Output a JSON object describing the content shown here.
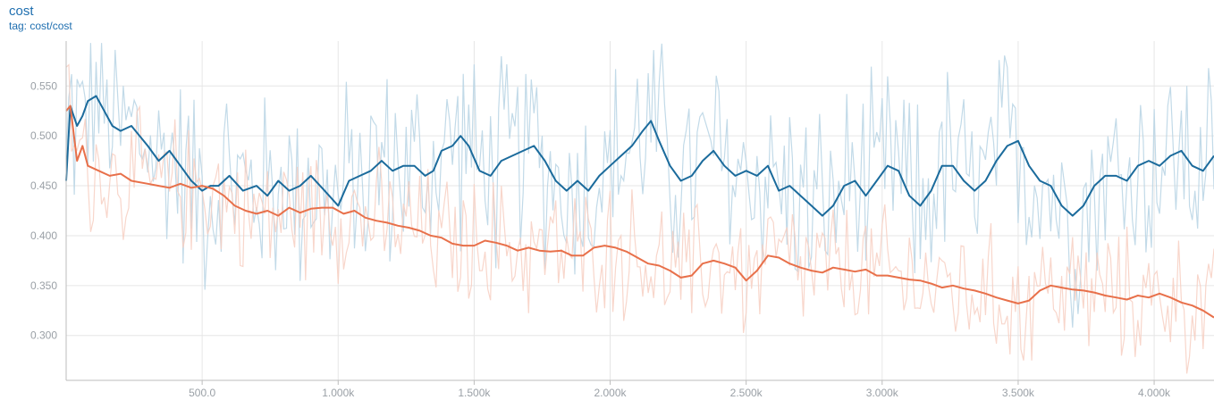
{
  "card": {
    "title": "cost",
    "tag": "tag: cost/cost"
  },
  "colors": {
    "blue_smoothed": "#1b6b9c",
    "blue_raw": "#b7d4e4",
    "orange_smoothed": "#e8704a",
    "orange_raw": "#f7cfc2",
    "grid": "#e6e6e6",
    "axis": "#bdbdbd"
  },
  "chart_data": {
    "type": "line",
    "title": "cost",
    "subtitle": "tag: cost/cost",
    "xlabel": "",
    "ylabel": "",
    "xlim": [
      0,
      4220
    ],
    "ylim": [
      0.255,
      0.595
    ],
    "grid": true,
    "x_ticks": [
      500,
      1000,
      1500,
      2000,
      2500,
      3000,
      3500,
      4000
    ],
    "x_tick_labels": [
      "500.0",
      "1.000k",
      "1.500k",
      "2.000k",
      "2.500k",
      "3.000k",
      "3.500k",
      "4.000k"
    ],
    "y_ticks": [
      0.3,
      0.35,
      0.4,
      0.45,
      0.5,
      0.55
    ],
    "y_tick_labels": [
      "0.300",
      "0.350",
      "0.400",
      "0.450",
      "0.500",
      "0.550"
    ],
    "series": [
      {
        "color_key": "blue",
        "smoothed": [
          [
            0,
            0.455
          ],
          [
            15,
            0.53
          ],
          [
            40,
            0.51
          ],
          [
            60,
            0.52
          ],
          [
            80,
            0.535
          ],
          [
            110,
            0.54
          ],
          [
            140,
            0.525
          ],
          [
            170,
            0.51
          ],
          [
            200,
            0.505
          ],
          [
            240,
            0.51
          ],
          [
            270,
            0.5
          ],
          [
            300,
            0.49
          ],
          [
            340,
            0.475
          ],
          [
            380,
            0.485
          ],
          [
            420,
            0.47
          ],
          [
            460,
            0.455
          ],
          [
            500,
            0.445
          ],
          [
            530,
            0.45
          ],
          [
            560,
            0.45
          ],
          [
            600,
            0.46
          ],
          [
            650,
            0.445
          ],
          [
            700,
            0.45
          ],
          [
            740,
            0.44
          ],
          [
            780,
            0.455
          ],
          [
            820,
            0.445
          ],
          [
            860,
            0.45
          ],
          [
            900,
            0.46
          ],
          [
            950,
            0.445
          ],
          [
            1000,
            0.43
          ],
          [
            1040,
            0.455
          ],
          [
            1080,
            0.46
          ],
          [
            1120,
            0.465
          ],
          [
            1160,
            0.475
          ],
          [
            1200,
            0.465
          ],
          [
            1240,
            0.47
          ],
          [
            1280,
            0.47
          ],
          [
            1320,
            0.46
          ],
          [
            1350,
            0.465
          ],
          [
            1380,
            0.485
          ],
          [
            1420,
            0.49
          ],
          [
            1450,
            0.5
          ],
          [
            1480,
            0.49
          ],
          [
            1520,
            0.465
          ],
          [
            1560,
            0.46
          ],
          [
            1600,
            0.475
          ],
          [
            1640,
            0.48
          ],
          [
            1680,
            0.485
          ],
          [
            1720,
            0.49
          ],
          [
            1760,
            0.475
          ],
          [
            1800,
            0.455
          ],
          [
            1840,
            0.445
          ],
          [
            1880,
            0.455
          ],
          [
            1920,
            0.445
          ],
          [
            1960,
            0.46
          ],
          [
            2000,
            0.47
          ],
          [
            2040,
            0.48
          ],
          [
            2080,
            0.49
          ],
          [
            2120,
            0.505
          ],
          [
            2150,
            0.515
          ],
          [
            2180,
            0.495
          ],
          [
            2220,
            0.47
          ],
          [
            2260,
            0.455
          ],
          [
            2300,
            0.46
          ],
          [
            2340,
            0.475
          ],
          [
            2380,
            0.485
          ],
          [
            2420,
            0.47
          ],
          [
            2460,
            0.46
          ],
          [
            2500,
            0.465
          ],
          [
            2540,
            0.46
          ],
          [
            2580,
            0.47
          ],
          [
            2620,
            0.445
          ],
          [
            2660,
            0.45
          ],
          [
            2700,
            0.44
          ],
          [
            2740,
            0.43
          ],
          [
            2780,
            0.42
          ],
          [
            2820,
            0.43
          ],
          [
            2860,
            0.45
          ],
          [
            2900,
            0.455
          ],
          [
            2940,
            0.44
          ],
          [
            2980,
            0.455
          ],
          [
            3020,
            0.47
          ],
          [
            3060,
            0.465
          ],
          [
            3100,
            0.44
          ],
          [
            3140,
            0.43
          ],
          [
            3180,
            0.445
          ],
          [
            3220,
            0.47
          ],
          [
            3260,
            0.47
          ],
          [
            3300,
            0.455
          ],
          [
            3340,
            0.445
          ],
          [
            3380,
            0.455
          ],
          [
            3420,
            0.475
          ],
          [
            3460,
            0.49
          ],
          [
            3500,
            0.495
          ],
          [
            3540,
            0.47
          ],
          [
            3580,
            0.455
          ],
          [
            3620,
            0.45
          ],
          [
            3660,
            0.43
          ],
          [
            3700,
            0.42
          ],
          [
            3740,
            0.43
          ],
          [
            3780,
            0.45
          ],
          [
            3820,
            0.46
          ],
          [
            3860,
            0.46
          ],
          [
            3900,
            0.455
          ],
          [
            3940,
            0.47
          ],
          [
            3980,
            0.475
          ],
          [
            4020,
            0.47
          ],
          [
            4060,
            0.48
          ],
          [
            4100,
            0.485
          ],
          [
            4140,
            0.47
          ],
          [
            4180,
            0.465
          ],
          [
            4220,
            0.48
          ]
        ]
      },
      {
        "color_key": "orange",
        "smoothed": [
          [
            0,
            0.525
          ],
          [
            15,
            0.53
          ],
          [
            40,
            0.475
          ],
          [
            60,
            0.49
          ],
          [
            80,
            0.47
          ],
          [
            120,
            0.465
          ],
          [
            160,
            0.46
          ],
          [
            200,
            0.462
          ],
          [
            240,
            0.455
          ],
          [
            300,
            0.452
          ],
          [
            340,
            0.45
          ],
          [
            380,
            0.448
          ],
          [
            420,
            0.452
          ],
          [
            460,
            0.448
          ],
          [
            500,
            0.45
          ],
          [
            540,
            0.447
          ],
          [
            580,
            0.44
          ],
          [
            620,
            0.43
          ],
          [
            660,
            0.425
          ],
          [
            700,
            0.422
          ],
          [
            740,
            0.425
          ],
          [
            780,
            0.42
          ],
          [
            820,
            0.428
          ],
          [
            860,
            0.423
          ],
          [
            900,
            0.427
          ],
          [
            940,
            0.428
          ],
          [
            980,
            0.428
          ],
          [
            1020,
            0.422
          ],
          [
            1060,
            0.425
          ],
          [
            1100,
            0.418
          ],
          [
            1140,
            0.415
          ],
          [
            1180,
            0.413
          ],
          [
            1220,
            0.41
          ],
          [
            1260,
            0.408
          ],
          [
            1300,
            0.405
          ],
          [
            1340,
            0.4
          ],
          [
            1380,
            0.398
          ],
          [
            1420,
            0.392
          ],
          [
            1460,
            0.39
          ],
          [
            1500,
            0.39
          ],
          [
            1540,
            0.395
          ],
          [
            1580,
            0.393
          ],
          [
            1620,
            0.39
          ],
          [
            1660,
            0.385
          ],
          [
            1700,
            0.388
          ],
          [
            1740,
            0.385
          ],
          [
            1780,
            0.384
          ],
          [
            1820,
            0.385
          ],
          [
            1860,
            0.38
          ],
          [
            1900,
            0.38
          ],
          [
            1940,
            0.388
          ],
          [
            1980,
            0.39
          ],
          [
            2020,
            0.388
          ],
          [
            2060,
            0.384
          ],
          [
            2100,
            0.378
          ],
          [
            2140,
            0.372
          ],
          [
            2180,
            0.37
          ],
          [
            2220,
            0.365
          ],
          [
            2260,
            0.358
          ],
          [
            2300,
            0.36
          ],
          [
            2340,
            0.372
          ],
          [
            2380,
            0.375
          ],
          [
            2420,
            0.372
          ],
          [
            2460,
            0.368
          ],
          [
            2500,
            0.355
          ],
          [
            2540,
            0.365
          ],
          [
            2580,
            0.38
          ],
          [
            2620,
            0.378
          ],
          [
            2660,
            0.372
          ],
          [
            2700,
            0.368
          ],
          [
            2740,
            0.365
          ],
          [
            2780,
            0.363
          ],
          [
            2820,
            0.368
          ],
          [
            2860,
            0.366
          ],
          [
            2900,
            0.364
          ],
          [
            2940,
            0.366
          ],
          [
            2980,
            0.36
          ],
          [
            3020,
            0.36
          ],
          [
            3060,
            0.358
          ],
          [
            3100,
            0.356
          ],
          [
            3140,
            0.355
          ],
          [
            3180,
            0.352
          ],
          [
            3220,
            0.348
          ],
          [
            3260,
            0.35
          ],
          [
            3300,
            0.347
          ],
          [
            3340,
            0.345
          ],
          [
            3380,
            0.342
          ],
          [
            3420,
            0.338
          ],
          [
            3460,
            0.335
          ],
          [
            3500,
            0.332
          ],
          [
            3540,
            0.335
          ],
          [
            3580,
            0.345
          ],
          [
            3620,
            0.35
          ],
          [
            3660,
            0.348
          ],
          [
            3700,
            0.346
          ],
          [
            3740,
            0.345
          ],
          [
            3780,
            0.343
          ],
          [
            3820,
            0.34
          ],
          [
            3860,
            0.338
          ],
          [
            3900,
            0.336
          ],
          [
            3940,
            0.34
          ],
          [
            3980,
            0.338
          ],
          [
            4020,
            0.342
          ],
          [
            4060,
            0.338
          ],
          [
            4100,
            0.333
          ],
          [
            4140,
            0.33
          ],
          [
            4180,
            0.325
          ],
          [
            4220,
            0.318
          ]
        ]
      }
    ]
  }
}
